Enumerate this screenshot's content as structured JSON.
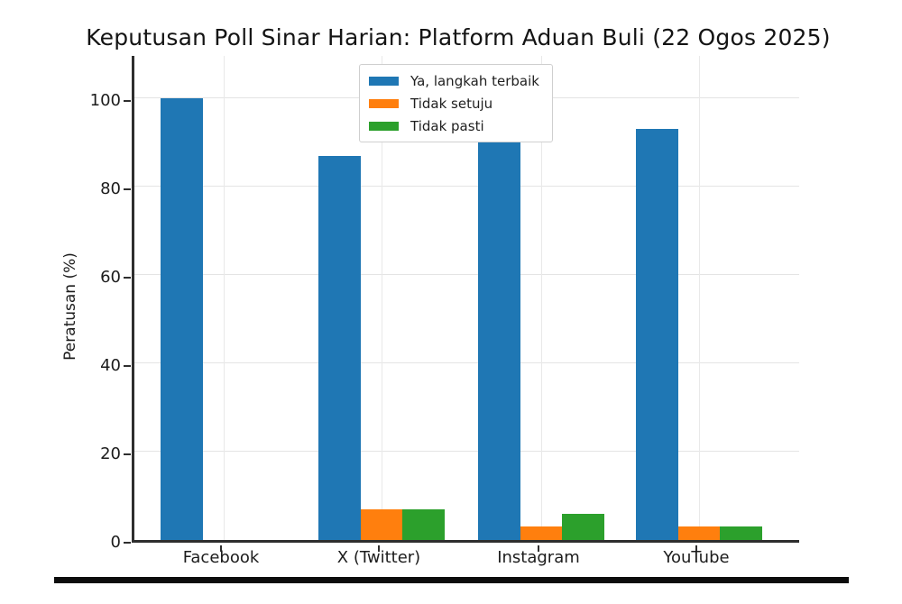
{
  "chart_data": {
    "type": "bar",
    "title": "Keputusan Poll Sinar Harian: Platform Aduan Buli (22 Ogos 2025)",
    "xlabel": "",
    "ylabel": "Peratusan (%)",
    "categories": [
      "Facebook",
      "X (Twitter)",
      "Instagram",
      "YouTube"
    ],
    "series": [
      {
        "name": "Ya, langkah terbaik",
        "color": "#1f77b4",
        "values": [
          100,
          87,
          91,
          93
        ]
      },
      {
        "name": "Tidak setuju",
        "color": "#ff7f0e",
        "values": [
          0,
          7,
          3,
          3
        ]
      },
      {
        "name": "Tidak pasti",
        "color": "#2ca02c",
        "values": [
          0,
          7,
          6,
          3
        ]
      }
    ],
    "yticks": [
      0,
      20,
      40,
      60,
      80,
      100
    ],
    "ylim": [
      0,
      110
    ],
    "grid": true,
    "legend_position": "upper center"
  },
  "decor": {
    "bottom_band_color": "#0c0c0c"
  }
}
